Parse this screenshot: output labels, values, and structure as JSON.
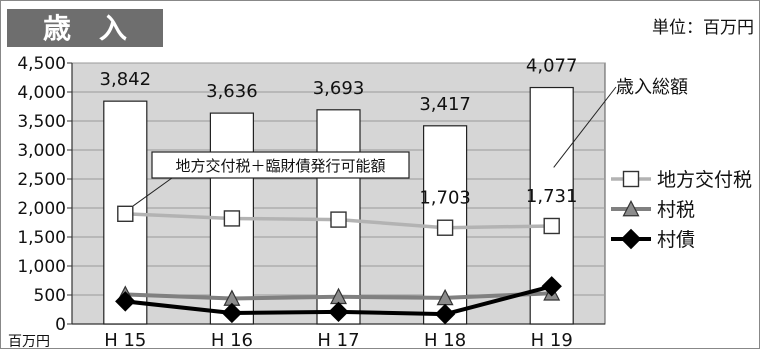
{
  "header": {
    "title": "歳　入",
    "unit": "単位：百万円"
  },
  "chart_data": {
    "type": "bar",
    "title": "歳　入",
    "unit_label": "単位：百万円",
    "ylabel": "百万円",
    "categories": [
      "H 15",
      "H 16",
      "H 17",
      "H 18",
      "H 19"
    ],
    "ylim": [
      0,
      4500
    ],
    "yticks": [
      0,
      500,
      1000,
      1500,
      2000,
      2500,
      3000,
      3500,
      4000,
      4500
    ],
    "grid": true,
    "legend_position": "right",
    "series": [
      {
        "name": "歳入総額",
        "kind": "bar",
        "values": [
          3842,
          3636,
          3693,
          3417,
          4077
        ],
        "labels": [
          "3,842",
          "3,636",
          "3,693",
          "3,417",
          "4,077"
        ],
        "color": "#ffffff"
      },
      {
        "name": "地方交付税",
        "kind": "line",
        "marker": "square",
        "values": [
          1900,
          1820,
          1800,
          1660,
          1690
        ],
        "labels": [
          "",
          "",
          "",
          "1,703",
          "1,731"
        ],
        "color": "#b3b3b3"
      },
      {
        "name": "村税",
        "kind": "line",
        "marker": "triangle",
        "values": [
          510,
          440,
          470,
          450,
          530
        ],
        "labels": [
          "",
          "",
          "",
          "",
          ""
        ],
        "color": "#808080"
      },
      {
        "name": "村債",
        "kind": "line",
        "marker": "diamond",
        "values": [
          390,
          190,
          210,
          170,
          650
        ],
        "labels": [
          "",
          "",
          "",
          "",
          ""
        ],
        "color": "#000000"
      }
    ],
    "annotations": [
      {
        "text": "地方交付税＋臨財債発行可能額"
      },
      {
        "text": "歳入総額"
      }
    ],
    "colors": {
      "plot_bg": "#d6d6d6",
      "title_bg": "#6e6e6e",
      "title_text": "#ffffff"
    }
  }
}
